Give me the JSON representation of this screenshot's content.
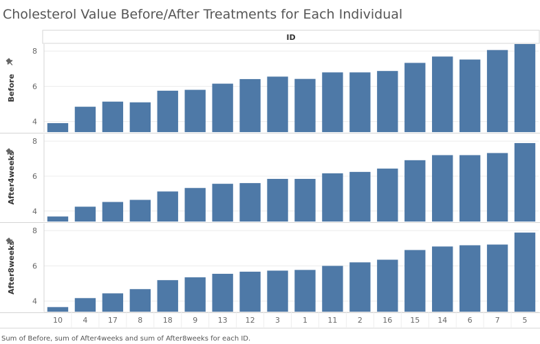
{
  "chart_data": {
    "type": "bar",
    "title": "Cholesterol Value Before/After Treatments for Each Individual",
    "column_header": "ID",
    "categories": [
      "10",
      "4",
      "17",
      "8",
      "18",
      "9",
      "13",
      "12",
      "3",
      "1",
      "11",
      "2",
      "16",
      "15",
      "14",
      "6",
      "7",
      "5"
    ],
    "series": [
      {
        "name": "Before",
        "values": [
          3.91,
          4.84,
          5.13,
          5.09,
          5.75,
          5.8,
          6.15,
          6.41,
          6.55,
          6.42,
          6.79,
          6.79,
          6.87,
          7.33,
          7.69,
          7.52,
          8.06,
          8.43
        ]
      },
      {
        "name": "After4weeks",
        "values": [
          3.69,
          4.25,
          4.52,
          4.64,
          5.12,
          5.32,
          5.56,
          5.6,
          5.84,
          5.84,
          6.16,
          6.24,
          6.43,
          6.91,
          7.2,
          7.2,
          7.32,
          7.89
        ]
      },
      {
        "name": "After8weeks",
        "values": [
          3.66,
          4.17,
          4.44,
          4.68,
          5.19,
          5.35,
          5.55,
          5.67,
          5.73,
          5.77,
          6.0,
          6.2,
          6.35,
          6.9,
          7.1,
          7.17,
          7.21,
          7.89
        ]
      }
    ],
    "ylim": [
      3.4,
      8.4
    ],
    "yticks": [
      4,
      6,
      8
    ],
    "grid": true,
    "bar_color": "#4e79a7",
    "caption": "Sum of Before, sum of After4weeks and sum of After8weeks for each ID."
  }
}
